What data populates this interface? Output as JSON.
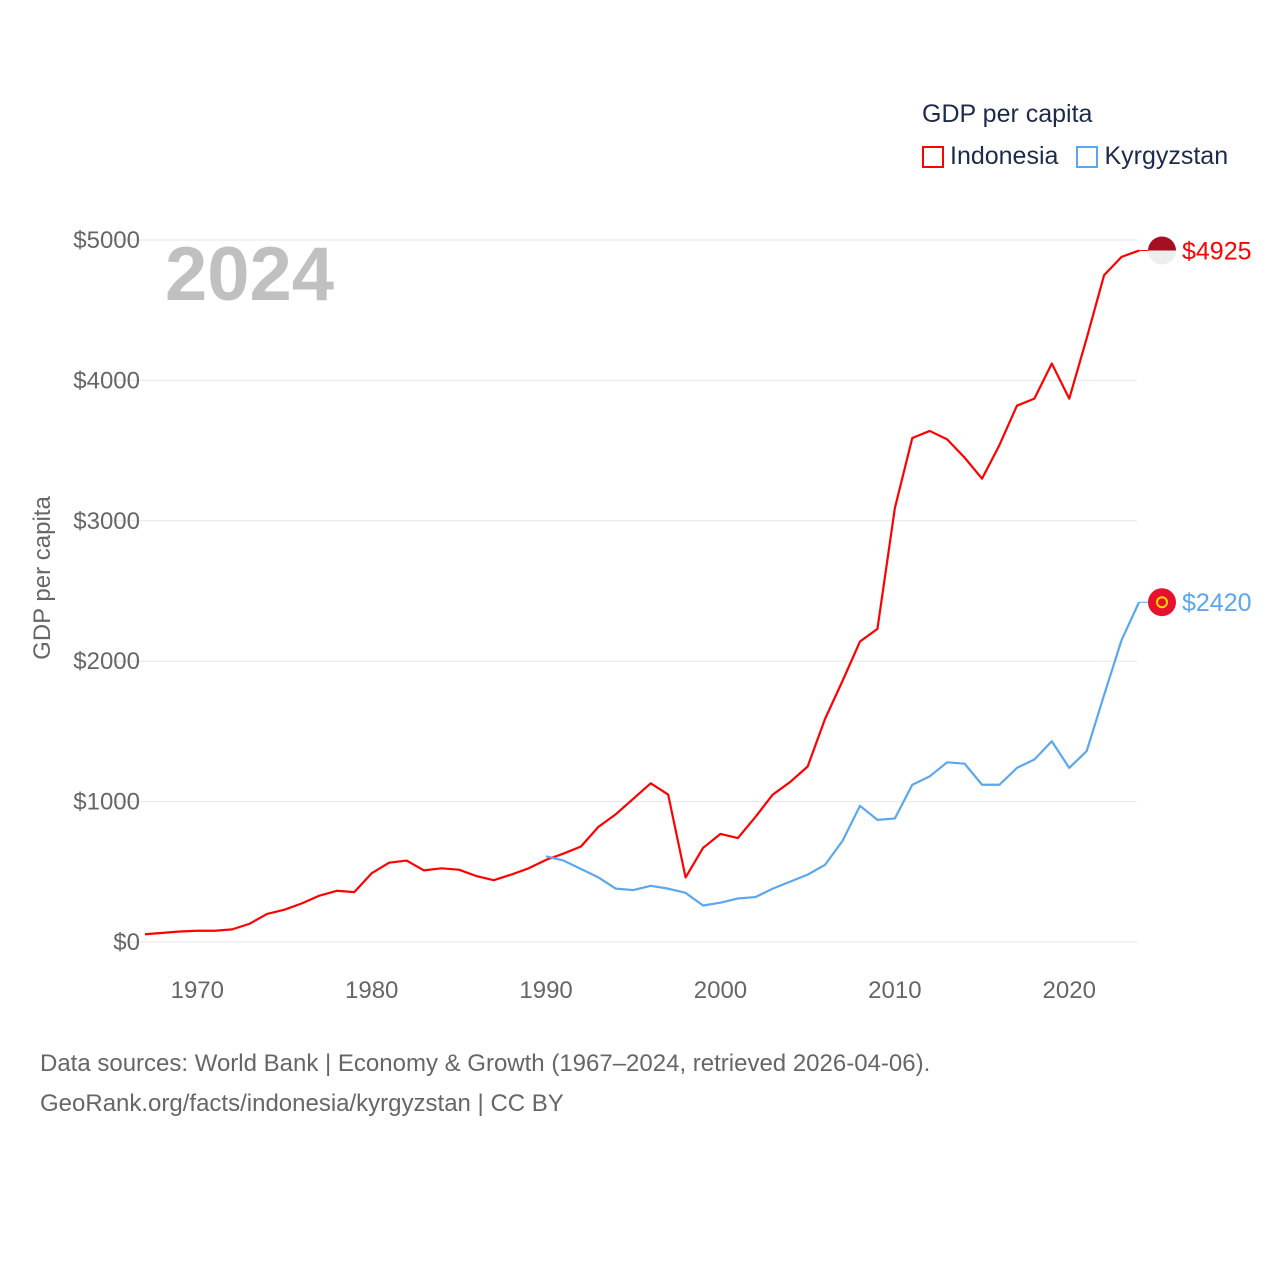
{
  "chart_data": {
    "type": "line",
    "title": "GDP per capita",
    "ylabel": "GDP per capita",
    "xlabel": "",
    "year_label": "2024",
    "ylim": [
      0,
      5000
    ],
    "xlim": [
      1967,
      2024
    ],
    "yticks": [
      0,
      1000,
      2000,
      3000,
      4000,
      5000
    ],
    "ytick_labels": [
      "$0",
      "$1000",
      "$2000",
      "$3000",
      "$4000",
      "$5000"
    ],
    "xticks": [
      1970,
      1980,
      1990,
      2000,
      2010,
      2020
    ],
    "xtick_labels": [
      "1970",
      "1980",
      "1990",
      "2000",
      "2010",
      "2020"
    ],
    "grid": true,
    "legend_position": "top-right",
    "series": [
      {
        "name": "Indonesia",
        "color": "#ff0000",
        "end_label": "$4925",
        "start_year": 1967,
        "values": [
          55,
          65,
          75,
          80,
          80,
          90,
          130,
          200,
          230,
          275,
          330,
          365,
          355,
          490,
          565,
          580,
          510,
          525,
          515,
          470,
          440,
          480,
          525,
          585,
          630,
          680,
          820,
          910,
          1020,
          1130,
          1050,
          460,
          670,
          770,
          740,
          890,
          1050,
          1140,
          1250,
          1590,
          1860,
          2140,
          2230,
          3090,
          3590,
          3640,
          3580,
          3450,
          3300,
          3540,
          3820,
          3870,
          4120,
          3870,
          4300,
          4750,
          4880,
          4925
        ]
      },
      {
        "name": "Kyrgyzstan",
        "color": "#5ba7ee",
        "end_label": "$2420",
        "start_year": 1990,
        "values": [
          610,
          580,
          520,
          460,
          380,
          370,
          400,
          380,
          350,
          260,
          280,
          310,
          320,
          380,
          430,
          480,
          550,
          720,
          970,
          870,
          880,
          1120,
          1180,
          1280,
          1270,
          1120,
          1120,
          1240,
          1300,
          1430,
          1240,
          1360,
          1760,
          2150,
          2420
        ]
      }
    ]
  },
  "source": {
    "line1": "Data sources: World Bank | Economy & Growth (1967–2024, retrieved 2026-04-06).",
    "line2": "GeoRank.org/facts/indonesia/kyrgyzstan | CC BY"
  }
}
